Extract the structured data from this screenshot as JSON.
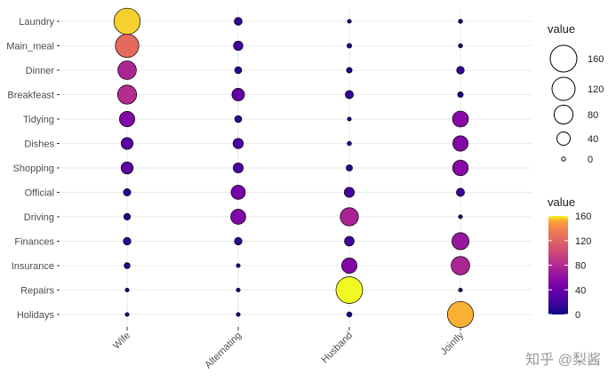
{
  "chart_data": {
    "type": "scatter",
    "subtype": "balloon",
    "title": "",
    "xlabel": "",
    "ylabel": "",
    "categories_x": [
      "Wife",
      "Alternating",
      "Husband",
      "Jointly"
    ],
    "categories_y": [
      "Laundry",
      "Main_meal",
      "Dinner",
      "Breakfeast",
      "Tidying",
      "Dishes",
      "Shopping",
      "Official",
      "Driving",
      "Finances",
      "Insurance",
      "Repairs",
      "Holidays"
    ],
    "values": {
      "Laundry": [
        156,
        14,
        2,
        4
      ],
      "Main_meal": [
        124,
        20,
        5,
        4
      ],
      "Dinner": [
        77,
        11,
        7,
        13
      ],
      "Breakfeast": [
        82,
        36,
        15,
        7
      ],
      "Tidying": [
        53,
        11,
        1,
        57
      ],
      "Dishes": [
        32,
        24,
        4,
        53
      ],
      "Shopping": [
        33,
        23,
        9,
        55
      ],
      "Official": [
        12,
        46,
        23,
        15
      ],
      "Driving": [
        10,
        51,
        75,
        3
      ],
      "Finances": [
        13,
        13,
        21,
        66
      ],
      "Insurance": [
        8,
        1,
        53,
        77
      ],
      "Repairs": [
        0,
        3,
        160,
        2
      ],
      "Holidays": [
        0,
        1,
        6,
        153
      ]
    },
    "size_legend": {
      "title": "value",
      "breaks": [
        160,
        120,
        80,
        40,
        0
      ]
    },
    "color_legend": {
      "title": "value",
      "breaks": [
        160,
        120,
        80,
        40,
        0
      ],
      "palette": "plasma",
      "range": [
        0,
        160
      ]
    },
    "grid": true,
    "legend_position": "right"
  },
  "watermark": "知乎 @梨酱"
}
